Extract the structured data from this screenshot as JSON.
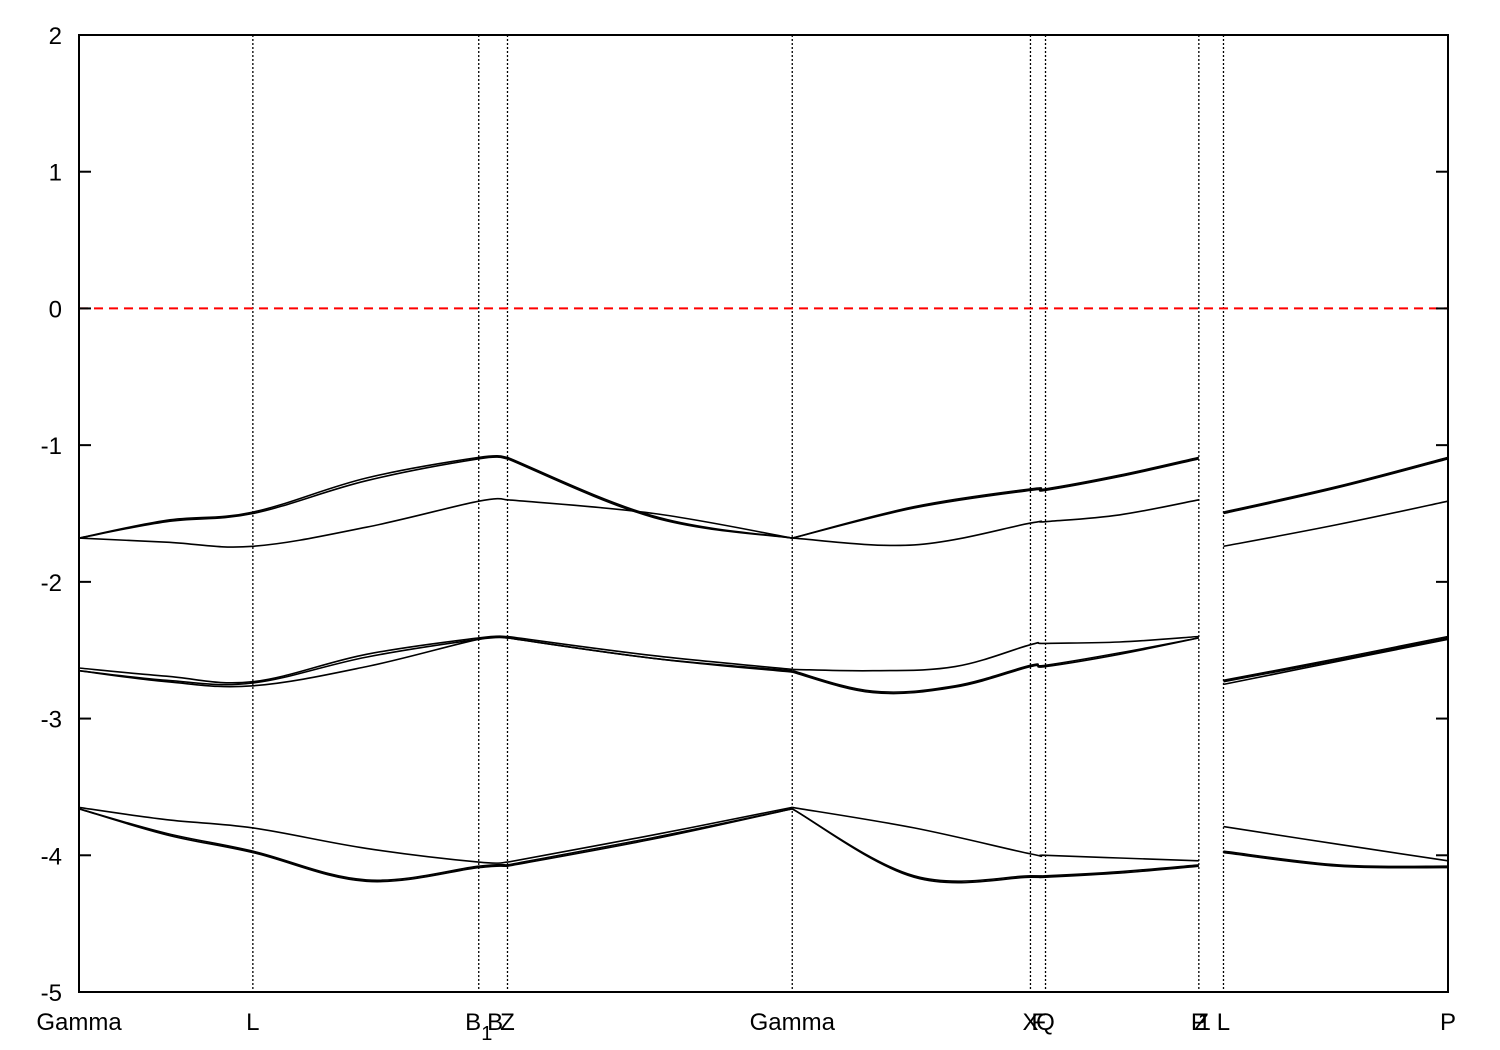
{
  "chart_data": {
    "type": "line",
    "title": "",
    "xlabel": "",
    "ylabel": "",
    "ylim": [
      -5,
      2
    ],
    "yticks": [
      -5,
      -4,
      -3,
      -2,
      -1,
      0,
      1,
      2
    ],
    "ytick_labels": [
      "-5",
      "-4",
      "-3",
      "-2",
      "-1",
      "0",
      "1",
      "2"
    ],
    "grid": false,
    "legend": "none",
    "xlim": [
      0,
      1
    ],
    "high_symmetry_points": [
      {
        "label": "Gamma",
        "sub": "",
        "x": 0.0,
        "line": false
      },
      {
        "label": "L",
        "sub": "",
        "x": 0.127,
        "line": true
      },
      {
        "label": "B",
        "sub": "1",
        "x": 0.292,
        "line": true
      },
      {
        "label": "B",
        "sub": "",
        "x": 0.304,
        "line": false
      },
      {
        "label": "Z",
        "sub": "",
        "x": 0.313,
        "line": true
      },
      {
        "label": "Gamma",
        "sub": "",
        "x": 0.521,
        "line": true
      },
      {
        "label": "X",
        "sub": "",
        "x": 0.695,
        "line": true
      },
      {
        "label": "Q",
        "sub": "",
        "x": 0.706,
        "line": true
      },
      {
        "label": "F",
        "sub": "",
        "x": 0.701,
        "line": false
      },
      {
        "label": "P",
        "sub": "",
        "x": 0.818,
        "line": true
      },
      {
        "label": "Z",
        "sub": "",
        "x": 0.82,
        "line": false
      },
      {
        "label": "1",
        "sub": "",
        "x": 0.822,
        "line": false
      },
      {
        "label": "L",
        "sub": "",
        "x": 0.836,
        "line": true
      },
      {
        "label": "P",
        "sub": "",
        "x": 1.0,
        "line": false
      }
    ],
    "fermi_level": {
      "y": 0,
      "color": "#ff0000",
      "style": "dashed"
    },
    "series_color": "#000000",
    "series": [
      {
        "segments": [
          {
            "x": [
              0,
              0.064,
              0.127,
              0.21,
              0.292,
              0.313
            ],
            "y": [
              -1.68,
              -1.55,
              -1.49,
              -1.24,
              -1.09,
              -1.09
            ]
          },
          {
            "x": [
              0.313,
              0.42,
              0.521
            ],
            "y": [
              -1.09,
              -1.52,
              -1.68
            ]
          },
          {
            "x": [
              0.521,
              0.61,
              0.695,
              0.706,
              0.76,
              0.818
            ],
            "y": [
              -1.68,
              -1.45,
              -1.32,
              -1.32,
              -1.22,
              -1.09
            ]
          },
          {
            "x": [
              0.836,
              0.92,
              1.0
            ],
            "y": [
              -1.49,
              -1.3,
              -1.09
            ]
          }
        ]
      },
      {
        "segments": [
          {
            "x": [
              0,
              0.064,
              0.127,
              0.21,
              0.292,
              0.313
            ],
            "y": [
              -1.68,
              -1.56,
              -1.5,
              -1.26,
              -1.1,
              -1.1
            ]
          },
          {
            "x": [
              0.313,
              0.42,
              0.521
            ],
            "y": [
              -1.1,
              -1.53,
              -1.68
            ]
          },
          {
            "x": [
              0.521,
              0.61,
              0.695,
              0.706,
              0.76,
              0.818
            ],
            "y": [
              -1.68,
              -1.46,
              -1.33,
              -1.33,
              -1.23,
              -1.1
            ]
          },
          {
            "x": [
              0.836,
              0.92,
              1.0
            ],
            "y": [
              -1.5,
              -1.31,
              -1.1
            ]
          }
        ]
      },
      {
        "segments": [
          {
            "x": [
              0,
              0.064,
              0.127,
              0.21,
              0.292,
              0.313
            ],
            "y": [
              -1.68,
              -1.71,
              -1.74,
              -1.6,
              -1.41,
              -1.4
            ]
          },
          {
            "x": [
              0.313,
              0.42,
              0.521
            ],
            "y": [
              -1.4,
              -1.5,
              -1.68
            ]
          },
          {
            "x": [
              0.521,
              0.61,
              0.695,
              0.706,
              0.76,
              0.818
            ],
            "y": [
              -1.68,
              -1.73,
              -1.57,
              -1.56,
              -1.51,
              -1.4
            ]
          },
          {
            "x": [
              0.836,
              0.92,
              1.0
            ],
            "y": [
              -1.74,
              -1.58,
              -1.41
            ]
          }
        ]
      },
      {
        "segments": [
          {
            "x": [
              0,
              0.064,
              0.127,
              0.21,
              0.292,
              0.313
            ],
            "y": [
              -2.63,
              -2.69,
              -2.73,
              -2.53,
              -2.41,
              -2.4
            ]
          },
          {
            "x": [
              0.313,
              0.42,
              0.521
            ],
            "y": [
              -2.4,
              -2.54,
              -2.64
            ]
          },
          {
            "x": [
              0.521,
              0.58,
              0.64,
              0.695,
              0.706,
              0.76,
              0.818
            ],
            "y": [
              -2.64,
              -2.65,
              -2.62,
              -2.46,
              -2.45,
              -2.44,
              -2.4
            ]
          },
          {
            "x": [
              0.836,
              0.92,
              1.0
            ],
            "y": [
              -2.72,
              -2.56,
              -2.4
            ]
          }
        ]
      },
      {
        "segments": [
          {
            "x": [
              0,
              0.064,
              0.127,
              0.21,
              0.292,
              0.313
            ],
            "y": [
              -2.65,
              -2.72,
              -2.74,
              -2.55,
              -2.42,
              -2.41
            ]
          },
          {
            "x": [
              0.313,
              0.42,
              0.521
            ],
            "y": [
              -2.41,
              -2.56,
              -2.65
            ]
          },
          {
            "x": [
              0.521,
              0.58,
              0.64,
              0.695,
              0.706,
              0.76,
              0.818
            ],
            "y": [
              -2.65,
              -2.8,
              -2.76,
              -2.61,
              -2.61,
              -2.52,
              -2.41
            ]
          },
          {
            "x": [
              0.836,
              0.92,
              1.0
            ],
            "y": [
              -2.73,
              -2.57,
              -2.41
            ]
          }
        ]
      },
      {
        "segments": [
          {
            "x": [
              0,
              0.064,
              0.127,
              0.21,
              0.292,
              0.313
            ],
            "y": [
              -2.65,
              -2.73,
              -2.76,
              -2.62,
              -2.42,
              -2.41
            ]
          },
          {
            "x": [
              0.313,
              0.42,
              0.521
            ],
            "y": [
              -2.41,
              -2.56,
              -2.66
            ]
          },
          {
            "x": [
              0.521,
              0.58,
              0.64,
              0.695,
              0.706,
              0.76,
              0.818
            ],
            "y": [
              -2.66,
              -2.81,
              -2.77,
              -2.62,
              -2.62,
              -2.53,
              -2.41
            ]
          },
          {
            "x": [
              0.836,
              0.92,
              1.0
            ],
            "y": [
              -2.75,
              -2.58,
              -2.42
            ]
          }
        ]
      },
      {
        "segments": [
          {
            "x": [
              0,
              0.064,
              0.127,
              0.21,
              0.292,
              0.313
            ],
            "y": [
              -3.65,
              -3.74,
              -3.8,
              -3.95,
              -4.05,
              -4.05
            ]
          },
          {
            "x": [
              0.313,
              0.42,
              0.521
            ],
            "y": [
              -4.05,
              -3.85,
              -3.65
            ]
          },
          {
            "x": [
              0.521,
              0.61,
              0.695,
              0.706,
              0.76,
              0.818
            ],
            "y": [
              -3.65,
              -3.8,
              -3.99,
              -4.0,
              -4.02,
              -4.04
            ]
          },
          {
            "x": [
              0.836,
              0.92,
              1.0
            ],
            "y": [
              -3.79,
              -3.92,
              -4.04
            ]
          }
        ]
      },
      {
        "segments": [
          {
            "x": [
              0,
              0.064,
              0.127,
              0.21,
              0.292,
              0.313
            ],
            "y": [
              -3.66,
              -3.84,
              -3.97,
              -4.18,
              -4.08,
              -4.07
            ]
          },
          {
            "x": [
              0.313,
              0.42,
              0.521
            ],
            "y": [
              -4.07,
              -3.87,
              -3.66
            ]
          },
          {
            "x": [
              0.521,
              0.61,
              0.695,
              0.706,
              0.76,
              0.818
            ],
            "y": [
              -3.66,
              -4.15,
              -4.15,
              -4.15,
              -4.12,
              -4.07
            ]
          },
          {
            "x": [
              0.836,
              0.92,
              1.0
            ],
            "y": [
              -3.97,
              -4.07,
              -4.08
            ]
          }
        ]
      },
      {
        "segments": [
          {
            "x": [
              0,
              0.064,
              0.127,
              0.21,
              0.292,
              0.313
            ],
            "y": [
              -3.66,
              -3.85,
              -3.98,
              -4.19,
              -4.09,
              -4.08
            ]
          },
          {
            "x": [
              0.313,
              0.42,
              0.521
            ],
            "y": [
              -4.08,
              -3.88,
              -3.66
            ]
          },
          {
            "x": [
              0.521,
              0.61,
              0.695,
              0.706,
              0.76,
              0.818
            ],
            "y": [
              -3.66,
              -4.16,
              -4.16,
              -4.16,
              -4.13,
              -4.08
            ]
          },
          {
            "x": [
              0.836,
              0.92,
              1.0
            ],
            "y": [
              -3.98,
              -4.08,
              -4.09
            ]
          }
        ]
      }
    ]
  }
}
